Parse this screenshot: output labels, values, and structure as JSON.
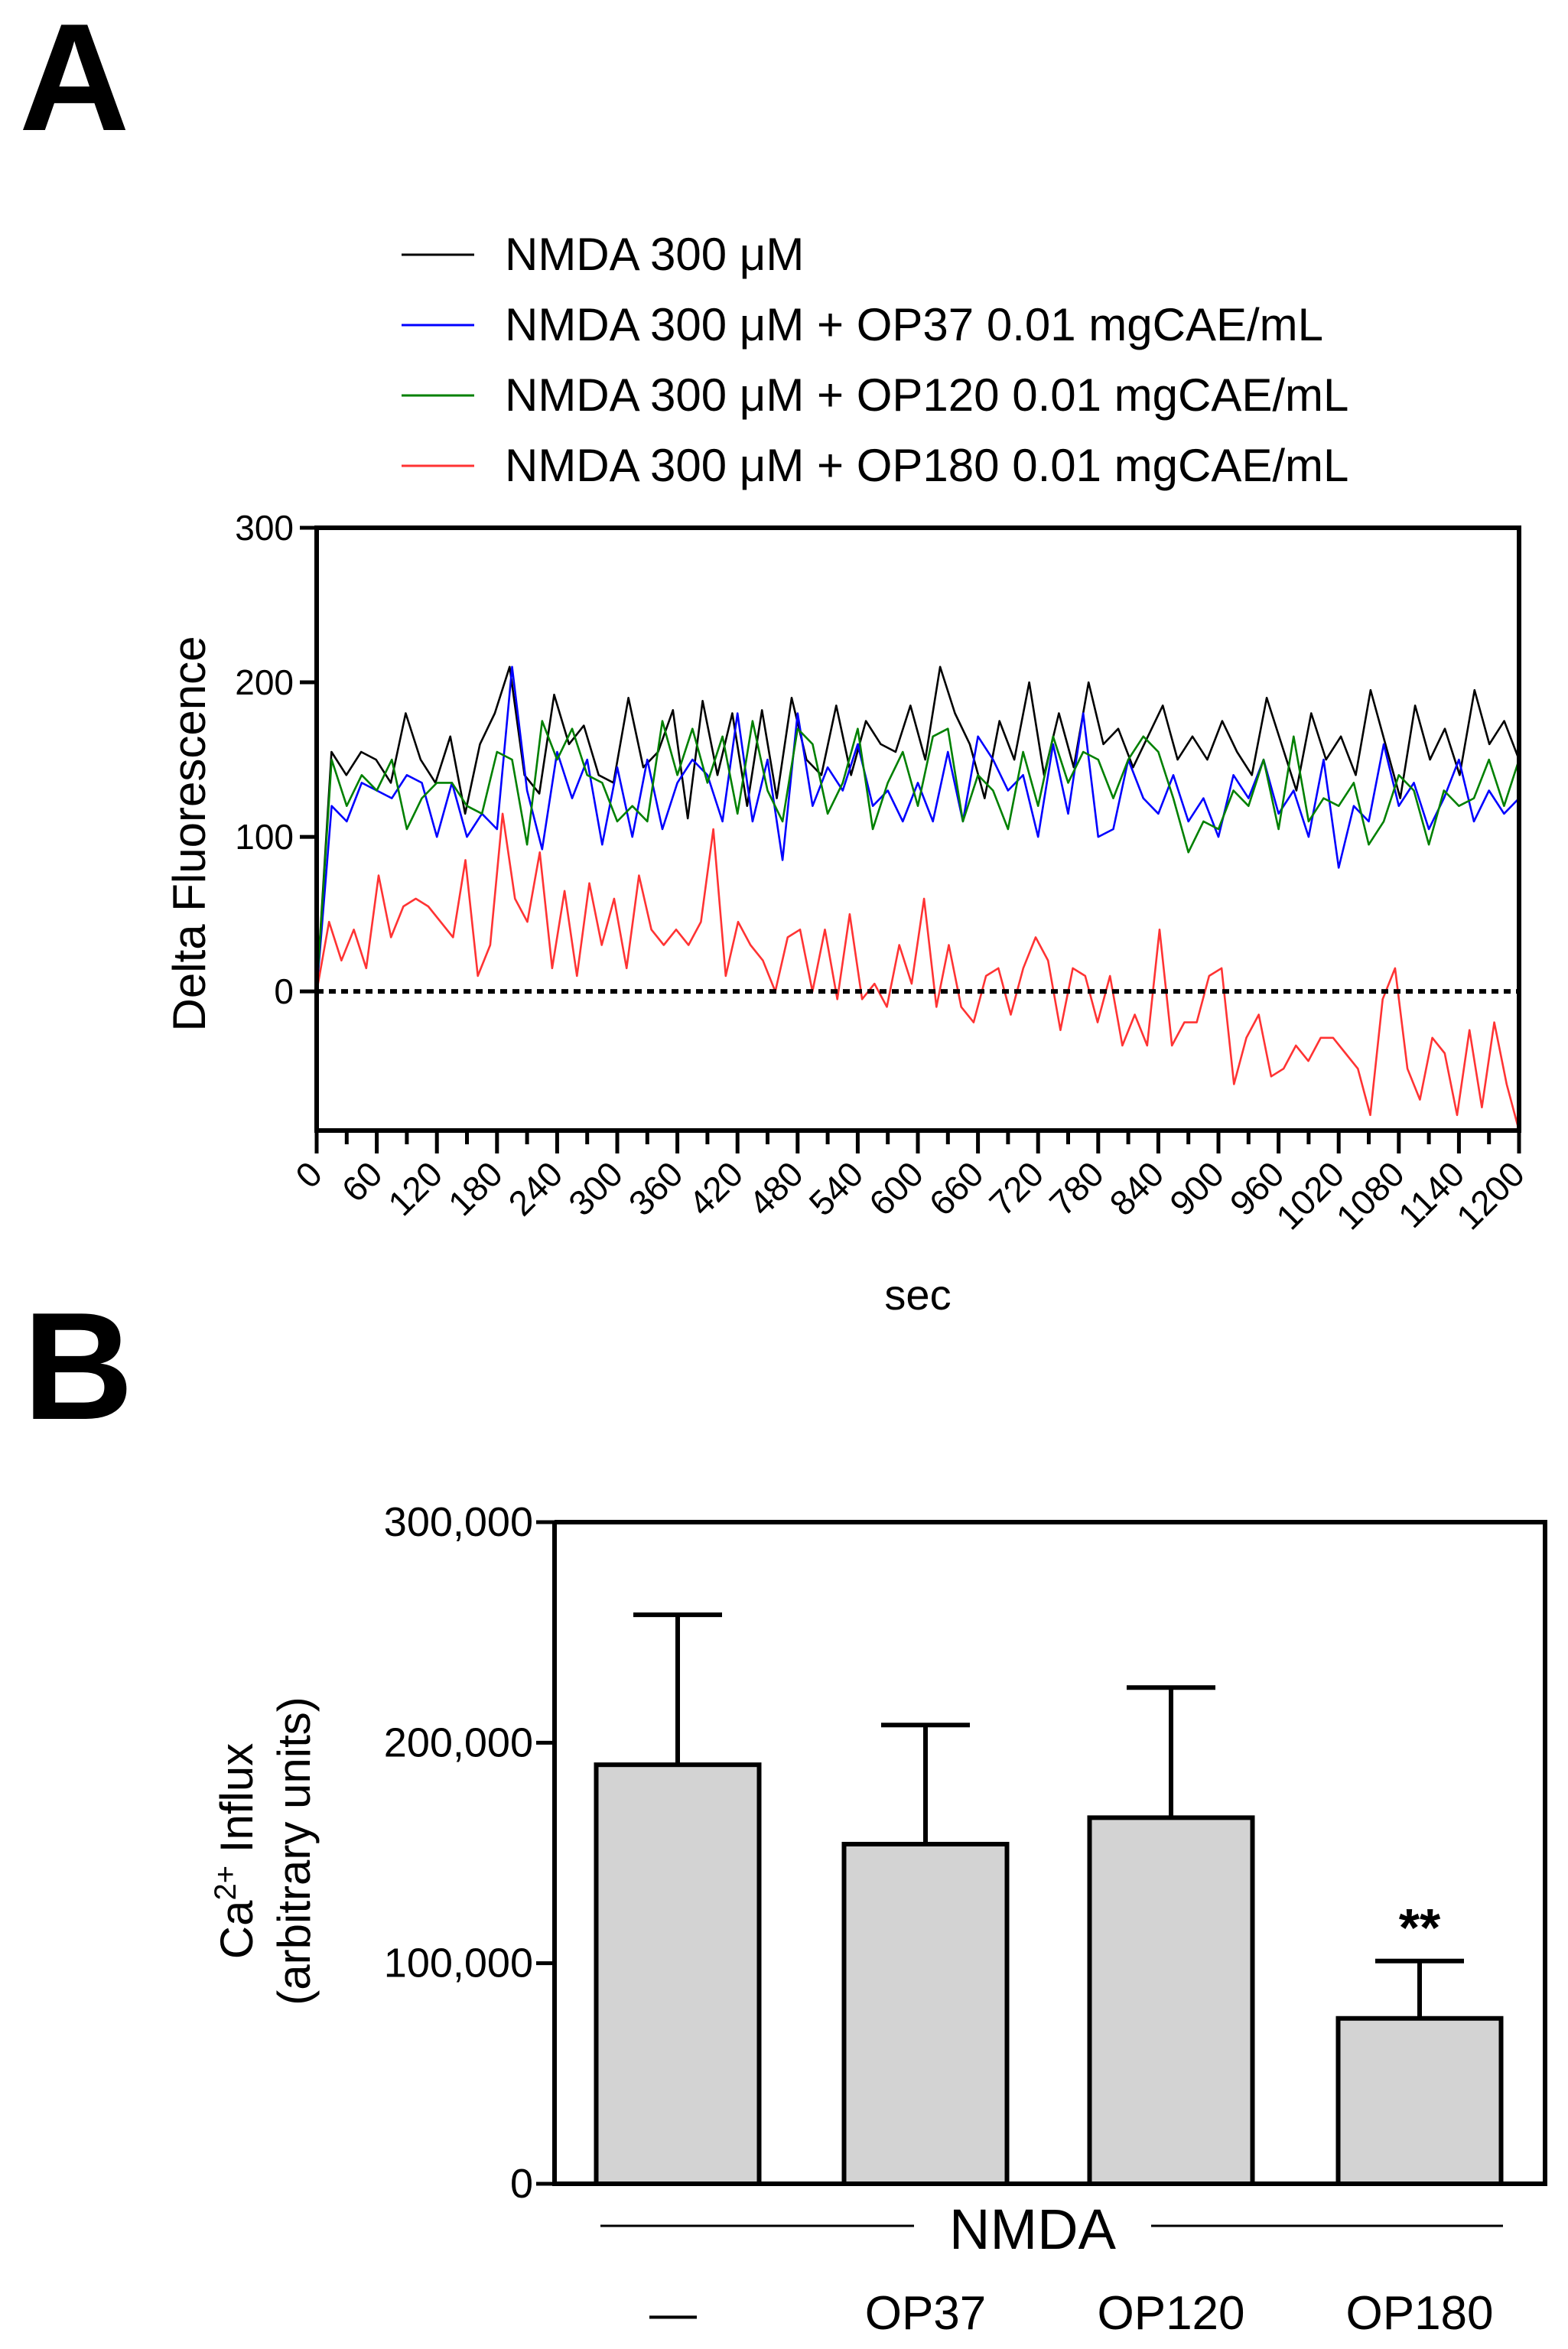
{
  "panels": {
    "a_label": "A",
    "b_label": "B"
  },
  "chart_data": [
    {
      "type": "line",
      "panel": "A",
      "xlabel": "sec",
      "ylabel": "Delta Fluorescence",
      "xlim": [
        0,
        1200
      ],
      "ylim": [
        -90,
        300
      ],
      "yticks": [
        0,
        100,
        200,
        300
      ],
      "xticks": [
        0,
        60,
        120,
        180,
        240,
        300,
        360,
        420,
        480,
        540,
        600,
        660,
        720,
        780,
        840,
        900,
        960,
        1020,
        1080,
        1140,
        1200
      ],
      "reference_line": {
        "y": 0,
        "style": "dotted"
      },
      "legend_position": "top",
      "series": [
        {
          "name": "NMDA 300 μM",
          "color": "#000000",
          "values": [
            0,
            155,
            140,
            155,
            150,
            135,
            180,
            150,
            135,
            165,
            115,
            160,
            180,
            210,
            140,
            128,
            192,
            160,
            172,
            140,
            135,
            190,
            145,
            155,
            182,
            112,
            188,
            140,
            180,
            120,
            182,
            125,
            190,
            150,
            140,
            185,
            140,
            175,
            160,
            155,
            185,
            150,
            210,
            180,
            160,
            125,
            175,
            150,
            200,
            140,
            180,
            145,
            200,
            160,
            170,
            145,
            165,
            185,
            150,
            165,
            150,
            175,
            155,
            140,
            190,
            160,
            130,
            180,
            150,
            165,
            140,
            195,
            160,
            125,
            185,
            150,
            170,
            140,
            195,
            160,
            175,
            150
          ]
        },
        {
          "name": "NMDA 300 μM + OP37 0.01 mgCAE/mL",
          "color": "#0000ff",
          "values": [
            0,
            120,
            110,
            135,
            130,
            125,
            140,
            135,
            100,
            135,
            100,
            115,
            105,
            210,
            130,
            92,
            155,
            125,
            150,
            95,
            145,
            100,
            150,
            105,
            135,
            150,
            140,
            110,
            180,
            110,
            150,
            85,
            180,
            120,
            145,
            130,
            160,
            120,
            130,
            110,
            135,
            110,
            155,
            110,
            165,
            150,
            130,
            140,
            100,
            160,
            115,
            180,
            100,
            105,
            150,
            125,
            115,
            140,
            110,
            125,
            100,
            140,
            125,
            150,
            115,
            130,
            100,
            150,
            80,
            120,
            110,
            160,
            120,
            135,
            105,
            125,
            150,
            110,
            130,
            115,
            125
          ]
        },
        {
          "name": "NMDA 300 μM + OP120 0.01 mgCAE/mL",
          "color": "#008000",
          "values": [
            0,
            150,
            120,
            140,
            130,
            150,
            105,
            125,
            135,
            135,
            120,
            115,
            155,
            150,
            95,
            175,
            150,
            170,
            140,
            135,
            110,
            120,
            110,
            175,
            140,
            170,
            135,
            165,
            115,
            175,
            130,
            110,
            170,
            160,
            115,
            135,
            170,
            105,
            135,
            155,
            120,
            165,
            170,
            110,
            140,
            130,
            105,
            155,
            120,
            165,
            135,
            155,
            150,
            125,
            150,
            165,
            155,
            125,
            90,
            110,
            105,
            130,
            120,
            150,
            105,
            165,
            110,
            125,
            120,
            135,
            95,
            110,
            140,
            130,
            95,
            130,
            120,
            125,
            150,
            120,
            150
          ]
        },
        {
          "name": "NMDA 300 μM + OP180 0.01 mgCAE/mL",
          "color": "#ff3333",
          "values": [
            0,
            45,
            20,
            40,
            15,
            75,
            35,
            55,
            60,
            55,
            45,
            35,
            85,
            10,
            30,
            115,
            60,
            45,
            90,
            15,
            65,
            10,
            70,
            30,
            60,
            15,
            75,
            40,
            30,
            40,
            30,
            45,
            105,
            10,
            45,
            30,
            20,
            0,
            35,
            40,
            0,
            40,
            -5,
            50,
            -5,
            5,
            -10,
            30,
            5,
            60,
            -10,
            30,
            -10,
            -20,
            10,
            15,
            -15,
            15,
            35,
            20,
            -25,
            15,
            10,
            -20,
            10,
            -35,
            -15,
            -35,
            40,
            -35,
            -20,
            -20,
            10,
            15,
            -60,
            -30,
            -15,
            -55,
            -50,
            -35,
            -45,
            -30,
            -30,
            -40,
            -50,
            -80,
            -5,
            15,
            -50,
            -70,
            -30,
            -40,
            -80,
            -25,
            -75,
            -20,
            -60,
            -90
          ]
        }
      ]
    },
    {
      "type": "bar",
      "panel": "B",
      "ylabel_line1": "Ca",
      "ylabel_sup": "2+",
      "ylabel_line1_rest": " Influx",
      "ylabel_line2": "(arbitrary units)",
      "ylim": [
        0,
        300000
      ],
      "yticks": [
        0,
        100000,
        200000,
        300000
      ],
      "ytick_labels": [
        "0",
        "100,000",
        "200,000",
        "300,000"
      ],
      "group_label": "NMDA",
      "categories": [
        "—",
        "OP37",
        "OP120",
        "OP180"
      ],
      "values": [
        190000,
        154000,
        166000,
        75000
      ],
      "errors": [
        68000,
        54000,
        59000,
        26000
      ],
      "bar_color": "#d3d3d3",
      "annotations": [
        {
          "category": "OP180",
          "text": "**"
        }
      ]
    }
  ]
}
